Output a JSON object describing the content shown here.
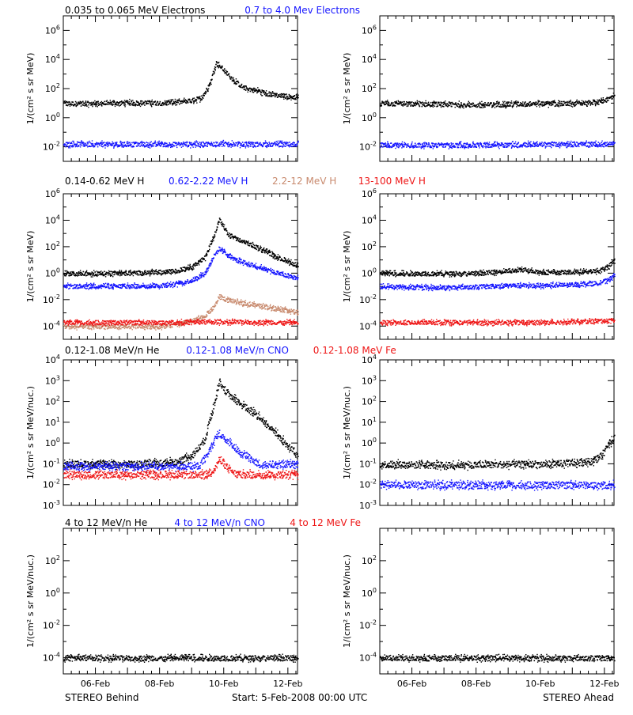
{
  "footer": {
    "left": "STEREO Behind",
    "center": "Start:  5-Feb-2008 00:00 UTC",
    "right": "STEREO Ahead"
  },
  "colors": {
    "black": "#000000",
    "blue": "#1515ff",
    "tan": "#c88a6e",
    "red": "#ee1515"
  },
  "chart_data": [
    {
      "type": "scatter",
      "row": 0,
      "ylabel": "1/(cm² s sr MeV)",
      "yscale": "log",
      "ylim_exp": [
        -3,
        7
      ],
      "ytick_exps": [
        -2,
        0,
        2,
        4,
        6
      ],
      "xlim_days": [
        5,
        12.3
      ],
      "x_ticks": [
        "06-Feb",
        "08-Feb",
        "10-Feb",
        "12-Feb"
      ],
      "legend": [
        {
          "label": "0.035 to 0.065 MeV Electrons",
          "color": "#000000"
        },
        {
          "label": "0.7 to 4.0 Mev Electrons",
          "color": "#1515ff"
        }
      ],
      "behind": [
        {
          "name": "0.035 to 0.065 MeV Electrons",
          "color": "#000000",
          "x": [
            5,
            6,
            7,
            8,
            8.6,
            9.0,
            9.3,
            9.55,
            9.75,
            10.0,
            10.3,
            10.6,
            11.0,
            11.5,
            12.0,
            12.3
          ],
          "log10y": [
            1.0,
            1.0,
            1.05,
            1.05,
            1.1,
            1.2,
            1.4,
            2.3,
            3.8,
            3.3,
            2.6,
            2.1,
            1.9,
            1.6,
            1.5,
            1.45
          ]
        },
        {
          "name": "0.7 to 4.0 Mev Electrons",
          "color": "#1515ff",
          "x": [
            5,
            7,
            9,
            10,
            11,
            12.3
          ],
          "log10y": [
            -1.8,
            -1.8,
            -1.8,
            -1.75,
            -1.8,
            -1.8
          ]
        }
      ],
      "ahead": [
        {
          "name": "0.035 to 0.065 MeV Electrons",
          "color": "#000000",
          "x": [
            5,
            7,
            8,
            9,
            10,
            11,
            11.8,
            12.1,
            12.3
          ],
          "log10y": [
            1.0,
            0.95,
            0.9,
            0.95,
            1.0,
            1.0,
            1.1,
            1.3,
            1.6
          ]
        },
        {
          "name": "0.7 to 4.0 Mev Electrons",
          "color": "#1515ff",
          "x": [
            5,
            8,
            10,
            12.3
          ],
          "log10y": [
            -1.85,
            -1.85,
            -1.8,
            -1.8
          ]
        }
      ]
    },
    {
      "type": "scatter",
      "row": 1,
      "ylabel": "1/(cm² s sr MeV)",
      "yscale": "log",
      "ylim_exp": [
        -5,
        6
      ],
      "ytick_exps": [
        -4,
        -2,
        0,
        2,
        4,
        6
      ],
      "xlim_days": [
        5,
        12.3
      ],
      "x_ticks": [
        "06-Feb",
        "08-Feb",
        "10-Feb",
        "12-Feb"
      ],
      "legend": [
        {
          "label": "0.14-0.62 MeV H",
          "color": "#000000"
        },
        {
          "label": "0.62-2.22 MeV H",
          "color": "#1515ff"
        },
        {
          "label": "2.2-12 MeV H",
          "color": "#c88a6e"
        },
        {
          "label": "13-100 MeV H",
          "color": "#ee1515"
        }
      ],
      "behind": [
        {
          "name": "0.14-0.62 MeV H",
          "color": "#000000",
          "x": [
            5,
            6,
            7,
            8,
            8.5,
            9.0,
            9.4,
            9.7,
            9.85,
            10.1,
            10.4,
            10.8,
            11.2,
            11.6,
            12.0,
            12.3
          ],
          "log10y": [
            0.0,
            0.0,
            0.05,
            0.1,
            0.2,
            0.5,
            1.2,
            3.0,
            4.1,
            3.0,
            2.6,
            2.2,
            1.8,
            1.3,
            0.9,
            0.6
          ]
        },
        {
          "name": "0.62-2.22 MeV H",
          "color": "#1515ff",
          "x": [
            5,
            6,
            7,
            8,
            8.5,
            9.0,
            9.4,
            9.7,
            9.85,
            10.1,
            10.4,
            10.8,
            11.2,
            11.6,
            12.0,
            12.3
          ],
          "log10y": [
            -0.95,
            -0.95,
            -0.95,
            -0.9,
            -0.8,
            -0.5,
            0.0,
            1.4,
            1.9,
            1.4,
            1.0,
            0.7,
            0.4,
            0.1,
            -0.2,
            -0.35
          ]
        },
        {
          "name": "2.2-12 MeV H",
          "color": "#c88a6e",
          "x": [
            8.0,
            8.6,
            9.0,
            9.4,
            9.7,
            9.85,
            10.1,
            10.5,
            11.0,
            11.5,
            12.0,
            12.3
          ],
          "log10y": [
            -4.0,
            -3.8,
            -3.6,
            -3.2,
            -2.5,
            -1.7,
            -2.0,
            -2.2,
            -2.4,
            -2.6,
            -2.8,
            -2.9
          ]
        },
        {
          "name": "13-100 MeV H",
          "color": "#ee1515",
          "x": [
            5,
            8,
            10,
            12.3
          ],
          "log10y": [
            -3.7,
            -3.7,
            -3.65,
            -3.7
          ]
        }
      ],
      "ahead": [
        {
          "name": "0.14-0.62 MeV H",
          "color": "#000000",
          "x": [
            5,
            7,
            8,
            9,
            9.5,
            10,
            11,
            11.8,
            12.1,
            12.3
          ],
          "log10y": [
            0.0,
            0.0,
            0.0,
            0.2,
            0.3,
            0.1,
            0.1,
            0.2,
            0.5,
            1.0
          ]
        },
        {
          "name": "0.62-2.22 MeV H",
          "color": "#1515ff",
          "x": [
            5,
            7,
            8,
            9,
            10,
            11,
            11.8,
            12.1,
            12.3
          ],
          "log10y": [
            -1.0,
            -1.05,
            -1.0,
            -0.9,
            -0.9,
            -0.85,
            -0.7,
            -0.5,
            -0.1
          ]
        },
        {
          "name": "13-100 MeV H",
          "color": "#ee1515",
          "x": [
            5,
            8,
            10,
            12.3
          ],
          "log10y": [
            -3.7,
            -3.7,
            -3.7,
            -3.55
          ]
        }
      ]
    },
    {
      "type": "scatter",
      "row": 2,
      "ylabel": "1/(cm² s sr MeV/nuc.)",
      "yscale": "log",
      "ylim_exp": [
        -3,
        4
      ],
      "ytick_exps": [
        -3,
        -2,
        -1,
        0,
        1,
        2,
        3,
        4
      ],
      "xlim_days": [
        5,
        12.3
      ],
      "x_ticks": [
        "06-Feb",
        "08-Feb",
        "10-Feb",
        "12-Feb"
      ],
      "legend": [
        {
          "label": "0.12-1.08 MeV/n He",
          "color": "#000000"
        },
        {
          "label": "0.12-1.08 MeV/n CNO",
          "color": "#1515ff"
        },
        {
          "label": "0.12-1.08 MeV Fe",
          "color": "#ee1515"
        }
      ],
      "behind": [
        {
          "name": "0.12-1.08 MeV/n He",
          "color": "#000000",
          "x": [
            5,
            6,
            7,
            8,
            8.5,
            9.0,
            9.4,
            9.7,
            9.85,
            10.1,
            10.5,
            11.0,
            11.4,
            11.8,
            12.1,
            12.3
          ],
          "log10y": [
            -1.0,
            -1.0,
            -1.0,
            -0.95,
            -0.9,
            -0.6,
            0.2,
            2.0,
            3.0,
            2.4,
            1.9,
            1.4,
            0.8,
            0.2,
            -0.3,
            -0.6
          ]
        },
        {
          "name": "0.12-1.08 MeV/n CNO",
          "color": "#1515ff",
          "x": [
            9.2,
            9.5,
            9.7,
            9.85,
            10.1,
            10.4,
            10.8,
            11.1
          ],
          "log10y": [
            -1.1,
            -0.5,
            0.2,
            0.5,
            0.1,
            -0.3,
            -0.7,
            -1.0
          ]
        },
        {
          "name": "0.12-1.08 MeV Fe",
          "color": "#ee1515",
          "x": [
            9.5,
            9.7,
            9.85,
            10.0,
            10.2,
            10.4
          ],
          "log10y": [
            -1.5,
            -1.2,
            -0.8,
            -1.0,
            -1.3,
            -1.5
          ]
        }
      ],
      "ahead": [
        {
          "name": "0.12-1.08 MeV/n He",
          "color": "#000000",
          "x": [
            5,
            7,
            9,
            10,
            11,
            11.6,
            11.9,
            12.1,
            12.3
          ],
          "log10y": [
            -1.0,
            -1.05,
            -1.0,
            -1.0,
            -0.95,
            -0.85,
            -0.6,
            -0.1,
            0.3
          ]
        },
        {
          "name": "0.12-1.08 MeV/n CNO",
          "color": "#1515ff",
          "x": [
            5,
            8,
            10,
            12.3
          ],
          "log10y": [
            -2.0,
            -2.0,
            -2.0,
            -2.0
          ]
        }
      ]
    },
    {
      "type": "scatter",
      "row": 3,
      "ylabel": "1/(cm² s sr MeV/nuc.)",
      "yscale": "log",
      "ylim_exp": [
        -5,
        4
      ],
      "ytick_exps": [
        -4,
        -2,
        0,
        2
      ],
      "xlim_days": [
        5,
        12.3
      ],
      "x_ticks": [
        "06-Feb",
        "08-Feb",
        "10-Feb",
        "12-Feb"
      ],
      "legend": [
        {
          "label": "4 to 12 MeV/n He",
          "color": "#000000"
        },
        {
          "label": "4 to 12 MeV/n CNO",
          "color": "#1515ff"
        },
        {
          "label": "4 to 12 MeV Fe",
          "color": "#ee1515"
        }
      ],
      "behind": [
        {
          "name": "4 to 12 MeV/n He",
          "color": "#000000",
          "x": [
            5,
            8,
            10,
            12.3
          ],
          "log10y": [
            -4.0,
            -4.0,
            -4.0,
            -4.0
          ]
        }
      ],
      "ahead": [
        {
          "name": "4 to 12 MeV/n He",
          "color": "#000000",
          "x": [
            5,
            8,
            10,
            12.3
          ],
          "log10y": [
            -4.0,
            -4.0,
            -4.0,
            -4.0
          ]
        }
      ]
    }
  ]
}
